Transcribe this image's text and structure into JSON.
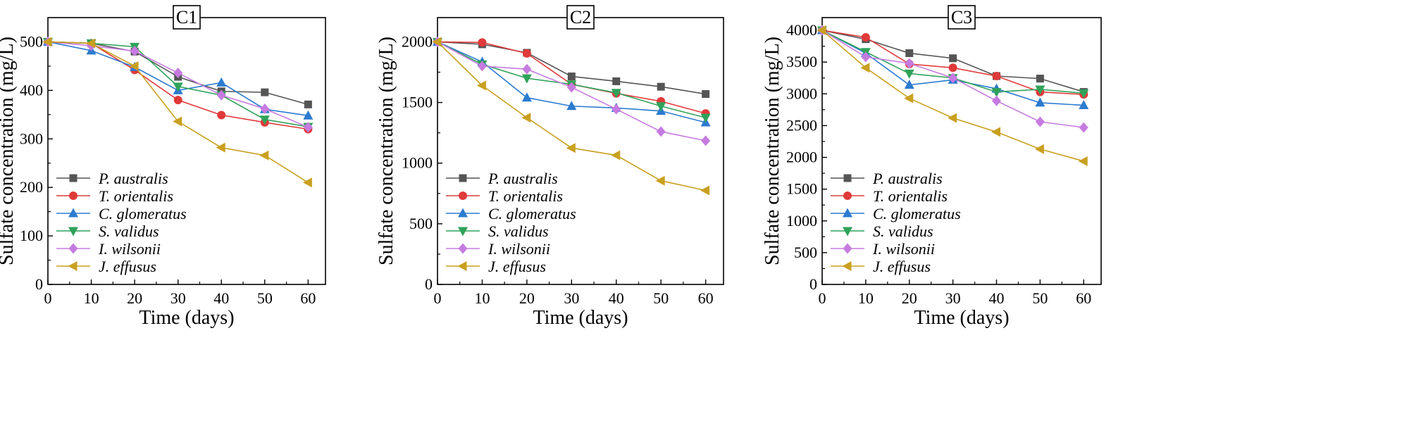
{
  "figure": {
    "description_label": "Sulfate concentration over time for three treatments"
  },
  "series_styles": [
    {
      "name": "P. australis",
      "color": "#555555",
      "marker": "square"
    },
    {
      "name": "T. orientalis",
      "color": "#e03a3a",
      "marker": "circle"
    },
    {
      "name": "C. glomeratus",
      "color": "#2b7bd0",
      "marker": "triangle-up"
    },
    {
      "name": "S. validus",
      "color": "#2fa35a",
      "marker": "triangle-down"
    },
    {
      "name": "I. wilsonii",
      "color": "#c67be0",
      "marker": "diamond"
    },
    {
      "name": "J. effusus",
      "color": "#c9a020",
      "marker": "triangle-left"
    }
  ],
  "chart_data": [
    {
      "type": "line",
      "title": "C1",
      "xlabel": "Time (days)",
      "ylabel": "Sulfate concentration (mg/L)",
      "x": [
        0,
        10,
        20,
        30,
        40,
        50,
        60
      ],
      "xticks": [
        0,
        10,
        20,
        30,
        40,
        50,
        60
      ],
      "yticks": [
        0,
        100,
        200,
        300,
        400,
        500
      ],
      "xlim": [
        0,
        64
      ],
      "ylim": [
        0,
        550
      ],
      "legend_position": "lower-left",
      "series": [
        {
          "name": "P. australis",
          "values": [
            500,
            497,
            480,
            428,
            398,
            396,
            371
          ]
        },
        {
          "name": "T. orientalis",
          "values": [
            500,
            497,
            442,
            380,
            349,
            334,
            320
          ]
        },
        {
          "name": "C. glomeratus",
          "values": [
            500,
            482,
            448,
            400,
            416,
            361,
            348
          ]
        },
        {
          "name": "S. validus",
          "values": [
            500,
            497,
            490,
            408,
            390,
            340,
            325
          ]
        },
        {
          "name": "I. wilsonii",
          "values": [
            500,
            492,
            481,
            436,
            390,
            362,
            324
          ]
        },
        {
          "name": "J. effusus",
          "values": [
            500,
            497,
            450,
            336,
            282,
            266,
            210
          ]
        }
      ]
    },
    {
      "type": "line",
      "title": "C2",
      "xlabel": "Time (days)",
      "ylabel": "Sulfate concentration (mg/L)",
      "x": [
        0,
        10,
        20,
        30,
        40,
        50,
        60
      ],
      "xticks": [
        0,
        10,
        20,
        30,
        40,
        50,
        60
      ],
      "yticks": [
        0,
        500,
        1000,
        1500,
        2000
      ],
      "xlim": [
        0,
        64
      ],
      "ylim": [
        0,
        2200
      ],
      "legend_position": "lower-left",
      "series": [
        {
          "name": "P. australis",
          "values": [
            2000,
            1980,
            1910,
            1715,
            1675,
            1630,
            1570
          ]
        },
        {
          "name": "T. orientalis",
          "values": [
            2000,
            1995,
            1905,
            1650,
            1575,
            1510,
            1410
          ]
        },
        {
          "name": "C. glomeratus",
          "values": [
            2000,
            1835,
            1540,
            1470,
            1455,
            1430,
            1335
          ]
        },
        {
          "name": "S. validus",
          "values": [
            2000,
            1815,
            1700,
            1650,
            1580,
            1470,
            1375
          ]
        },
        {
          "name": "I. wilsonii",
          "values": [
            2000,
            1800,
            1775,
            1625,
            1445,
            1260,
            1185
          ]
        },
        {
          "name": "J. effusus",
          "values": [
            2000,
            1640,
            1375,
            1125,
            1065,
            855,
            775
          ]
        }
      ]
    },
    {
      "type": "line",
      "title": "C3",
      "xlabel": "Time (days)",
      "ylabel": "Sulfate concentration (mg/L)",
      "x": [
        0,
        10,
        20,
        30,
        40,
        50,
        60
      ],
      "xticks": [
        0,
        10,
        20,
        30,
        40,
        50,
        60
      ],
      "yticks": [
        0,
        500,
        1000,
        1500,
        2000,
        2500,
        3000,
        3500,
        4000
      ],
      "xlim": [
        0,
        64
      ],
      "ylim": [
        0,
        4200
      ],
      "legend_position": "lower-left",
      "series": [
        {
          "name": "P. australis",
          "values": [
            4000,
            3860,
            3640,
            3560,
            3280,
            3240,
            3030
          ]
        },
        {
          "name": "T. orientalis",
          "values": [
            4000,
            3890,
            3470,
            3410,
            3280,
            3030,
            2990
          ]
        },
        {
          "name": "C. glomeratus",
          "values": [
            4000,
            3640,
            3140,
            3220,
            3080,
            2860,
            2820
          ]
        },
        {
          "name": "S. validus",
          "values": [
            4000,
            3660,
            3320,
            3250,
            3030,
            3070,
            3010
          ]
        },
        {
          "name": "I. wilsonii",
          "values": [
            4000,
            3580,
            3480,
            3250,
            2890,
            2560,
            2470
          ]
        },
        {
          "name": "J. effusus",
          "values": [
            4000,
            3410,
            2930,
            2620,
            2400,
            2130,
            1940
          ]
        }
      ]
    }
  ]
}
